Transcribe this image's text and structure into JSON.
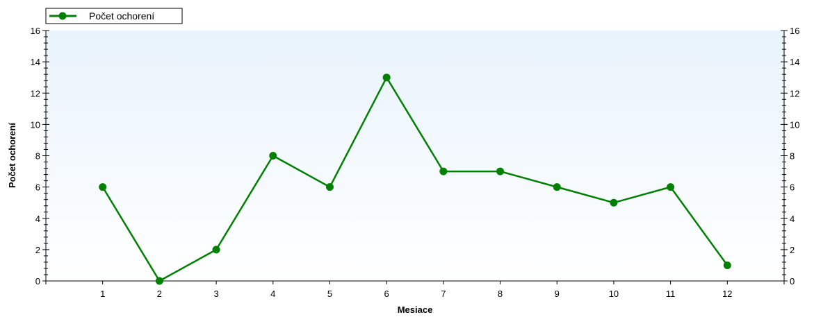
{
  "chart_data": {
    "type": "line",
    "x": [
      1,
      2,
      3,
      4,
      5,
      6,
      7,
      8,
      9,
      10,
      11,
      12
    ],
    "series": [
      {
        "name": "Počet ochorení",
        "values": [
          6,
          0,
          2,
          8,
          6,
          13,
          7,
          7,
          6,
          5,
          6,
          1
        ],
        "color": "#008000"
      }
    ],
    "xlabel": "Mesiace",
    "ylabel": "Počet ochorení",
    "xlim": [
      0,
      13
    ],
    "ylim": [
      0,
      16
    ],
    "y_ticks": [
      0,
      2,
      4,
      6,
      8,
      10,
      12,
      14,
      16
    ],
    "x_ticks": [
      1,
      2,
      3,
      4,
      5,
      6,
      7,
      8,
      9,
      10,
      11,
      12
    ],
    "secondary_y_axis": true,
    "grid": false,
    "legend_position": "top-left",
    "background_gradient": [
      "#e8f3fc",
      "#ffffff"
    ]
  }
}
